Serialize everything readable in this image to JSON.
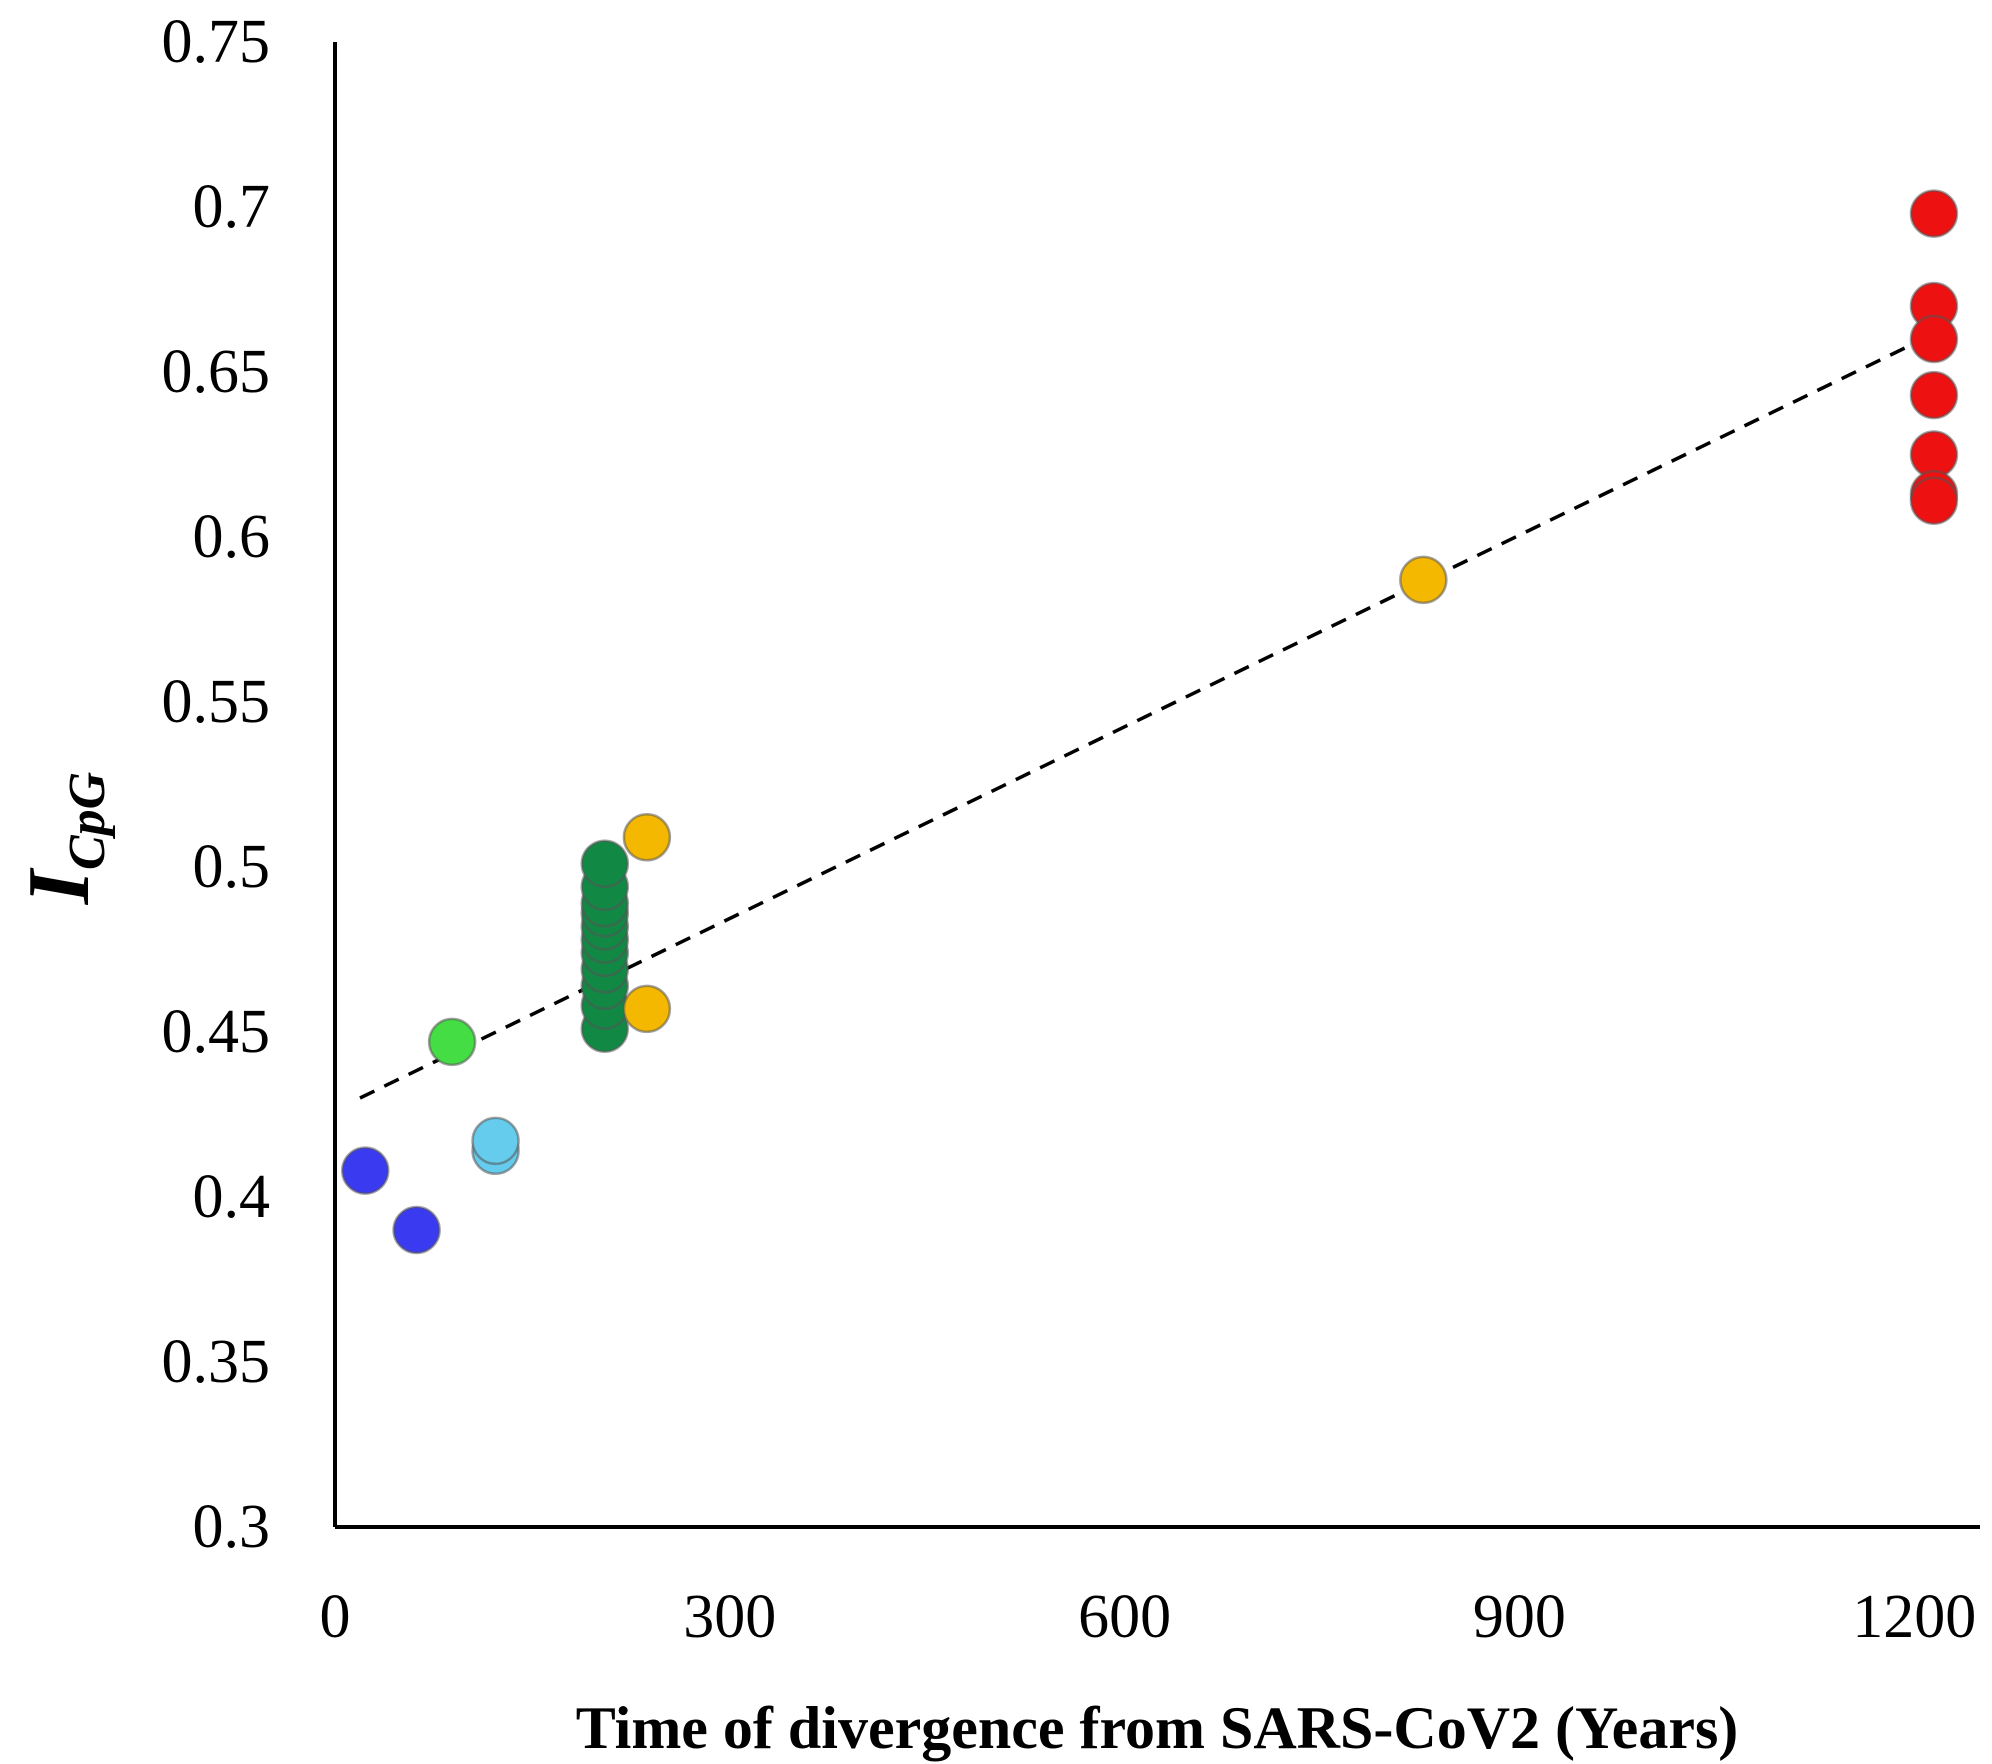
{
  "chart_data": {
    "type": "scatter",
    "title": "",
    "xlabel": "Time of divergence from SARS-CoV2 (Years)",
    "ylabel": {
      "main": "I",
      "subscript": "CpG"
    },
    "xlim": [
      0,
      1250
    ],
    "ylim": [
      0.3,
      0.75
    ],
    "xticks": [
      0,
      300,
      600,
      900,
      1200
    ],
    "xtick_labels": [
      "0",
      "300",
      "600",
      "900",
      "1200"
    ],
    "yticks": [
      0.3,
      0.35,
      0.4,
      0.45,
      0.5,
      0.55,
      0.6,
      0.65,
      0.7,
      0.75
    ],
    "ytick_labels": [
      "0.3",
      "0.35",
      "0.4",
      "0.45",
      "0.5",
      "0.55",
      "0.6",
      "0.65",
      "0.7",
      "0.75"
    ],
    "grid": false,
    "series": [
      {
        "name": "blue",
        "color": "#3a3af0",
        "points": [
          [
            23,
            0.408
          ],
          [
            62,
            0.39
          ]
        ]
      },
      {
        "name": "light-green",
        "color": "#44dd44",
        "points": [
          [
            89,
            0.447
          ]
        ]
      },
      {
        "name": "light-blue",
        "color": "#66ccee",
        "points": [
          [
            122,
            0.414
          ],
          [
            122,
            0.417
          ]
        ]
      },
      {
        "name": "dark-green",
        "color": "#118844",
        "points": [
          [
            205,
            0.451
          ],
          [
            205,
            0.458
          ],
          [
            205,
            0.464
          ],
          [
            205,
            0.469
          ],
          [
            205,
            0.474
          ],
          [
            205,
            0.478
          ],
          [
            205,
            0.482
          ],
          [
            205,
            0.486
          ],
          [
            205,
            0.489
          ],
          [
            205,
            0.494
          ],
          [
            205,
            0.501
          ]
        ]
      },
      {
        "name": "orange",
        "color": "#f5b800",
        "points": [
          [
            237,
            0.509
          ],
          [
            237,
            0.457
          ],
          [
            827,
            0.587
          ]
        ]
      },
      {
        "name": "red",
        "color": "#ee1111",
        "points": [
          [
            1215,
            0.698
          ],
          [
            1215,
            0.67
          ],
          [
            1215,
            0.66
          ],
          [
            1215,
            0.643
          ],
          [
            1215,
            0.625
          ],
          [
            1215,
            0.613
          ],
          [
            1215,
            0.611
          ]
        ]
      }
    ],
    "trendline": {
      "style": "dashed",
      "color": "#000000",
      "from": [
        19,
        0.43
      ],
      "to": [
        1207,
        0.66
      ]
    }
  }
}
